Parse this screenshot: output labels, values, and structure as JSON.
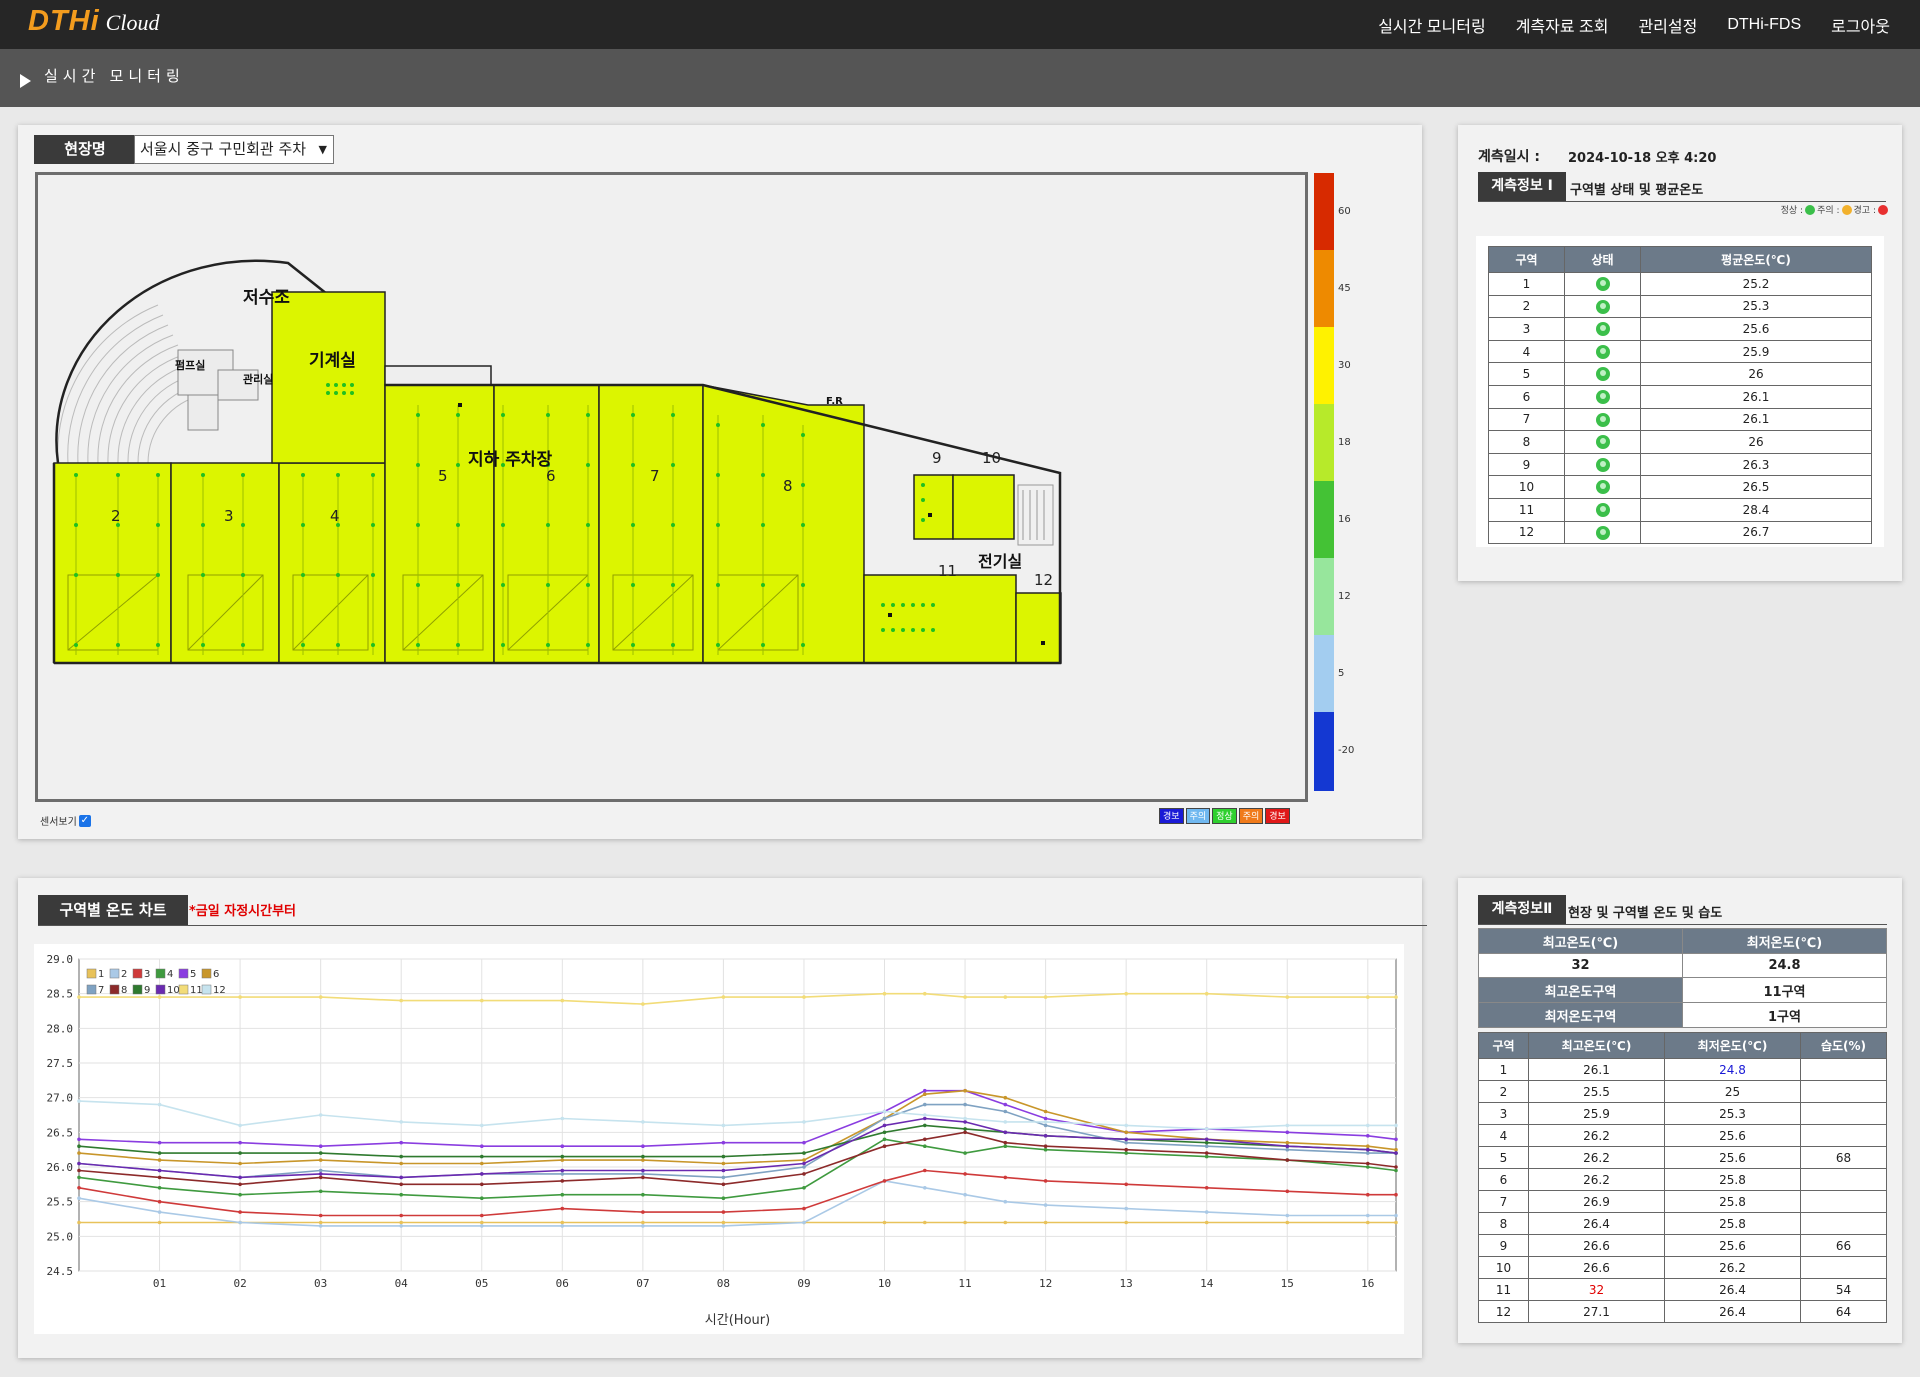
{
  "app": {
    "logo_main": "DTHi",
    "logo_sub": "Cloud"
  },
  "nav": {
    "items": [
      "실시간 모니터링",
      "계측자료 조회",
      "관리설정",
      "DTHi-FDS",
      "로그아웃"
    ]
  },
  "breadcrumb": {
    "title": "실시간 모니터링"
  },
  "map": {
    "site_label": "현장명",
    "site_value": "서울시 중구 구민회관 주차",
    "sensor_toggle_label": "센서보기",
    "sensor_toggle_checked": true,
    "room_labels": [
      "저수조",
      "펌프실",
      "관리실",
      "기계실",
      "지하 주차장",
      "F.R",
      "전기실"
    ],
    "zone_numbers": [
      "2",
      "3",
      "4",
      "5",
      "6",
      "7",
      "8",
      "9",
      "10",
      "11",
      "12"
    ],
    "zone_fill_color": "#dcf500",
    "scale": [
      {
        "label": "60",
        "color": "#d72a00"
      },
      {
        "label": "45",
        "color": "#ee8a00"
      },
      {
        "label": "30",
        "color": "#fff200"
      },
      {
        "label": "18",
        "color": "#b7ea2a"
      },
      {
        "label": "16",
        "color": "#44c235"
      },
      {
        "label": "12",
        "color": "#97e69c"
      },
      {
        "label": "5",
        "color": "#a3cdf0"
      },
      {
        "label": "-20",
        "color": "#1438d2"
      }
    ],
    "legend_badges": [
      {
        "label": "경보",
        "color": "#1a1ad6"
      },
      {
        "label": "주의",
        "color": "#70b8f0"
      },
      {
        "label": "정상",
        "color": "#2fd02f"
      },
      {
        "label": "주의",
        "color": "#f07a1a"
      },
      {
        "label": "경보",
        "color": "#e01818"
      }
    ]
  },
  "info1": {
    "date_label": "계측일시 :",
    "date_value": "2024-10-18 오후 4:20",
    "section_tab": "계측정보 Ⅰ",
    "section_title": "구역별 상태 및 평균온도",
    "legend": {
      "normal": "정상 :",
      "caution": "주의 :",
      "warning": "경고 :"
    },
    "headers": [
      "구역",
      "상태",
      "평균온도(℃)"
    ],
    "rows": [
      [
        "1",
        "25.2"
      ],
      [
        "2",
        "25.3"
      ],
      [
        "3",
        "25.6"
      ],
      [
        "4",
        "25.9"
      ],
      [
        "5",
        "26"
      ],
      [
        "6",
        "26.1"
      ],
      [
        "7",
        "26.1"
      ],
      [
        "8",
        "26"
      ],
      [
        "9",
        "26.3"
      ],
      [
        "10",
        "26.5"
      ],
      [
        "11",
        "28.4"
      ],
      [
        "12",
        "26.7"
      ]
    ]
  },
  "chart_section": {
    "title": "구역별 온도 차트",
    "note": "*금일 자정시간부터"
  },
  "chart_data": {
    "type": "line",
    "title": "",
    "xlabel": "시간(Hour)",
    "ylabel": "",
    "xlim": [
      0,
      16.35
    ],
    "ylim": [
      24.5,
      29.0
    ],
    "x_ticks": [
      "01",
      "02",
      "03",
      "04",
      "05",
      "06",
      "07",
      "08",
      "09",
      "10",
      "11",
      "12",
      "13",
      "14",
      "15",
      "16"
    ],
    "y_ticks": [
      "29.0",
      "28.5",
      "28.0",
      "27.5",
      "27.0",
      "26.5",
      "26.0",
      "25.5",
      "25.0",
      "24.5"
    ],
    "grid": true,
    "legend_position": "top-left",
    "x": [
      0,
      1,
      2,
      3,
      4,
      5,
      6,
      7,
      8,
      9,
      10,
      10.5,
      11,
      11.5,
      12,
      13,
      14,
      15,
      16,
      16.35
    ],
    "series": [
      {
        "name": "1",
        "color": "#e8c25a",
        "values": [
          25.2,
          25.2,
          25.2,
          25.2,
          25.2,
          25.2,
          25.2,
          25.2,
          25.2,
          25.2,
          25.2,
          25.2,
          25.2,
          25.2,
          25.2,
          25.2,
          25.2,
          25.2,
          25.2,
          25.2
        ]
      },
      {
        "name": "2",
        "color": "#aac9e6",
        "values": [
          25.55,
          25.35,
          25.2,
          25.15,
          25.15,
          25.15,
          25.15,
          25.15,
          25.15,
          25.2,
          25.8,
          25.7,
          25.6,
          25.5,
          25.45,
          25.4,
          25.35,
          25.3,
          25.3,
          25.3
        ]
      },
      {
        "name": "3",
        "color": "#cf3a3a",
        "values": [
          25.7,
          25.5,
          25.35,
          25.3,
          25.3,
          25.3,
          25.4,
          25.35,
          25.35,
          25.4,
          25.8,
          25.95,
          25.9,
          25.85,
          25.8,
          25.75,
          25.7,
          25.65,
          25.6,
          25.6
        ]
      },
      {
        "name": "4",
        "color": "#3f9a3f",
        "values": [
          25.85,
          25.7,
          25.6,
          25.65,
          25.6,
          25.55,
          25.6,
          25.6,
          25.55,
          25.7,
          26.4,
          26.3,
          26.2,
          26.3,
          26.25,
          26.2,
          26.15,
          26.1,
          26.0,
          25.95
        ]
      },
      {
        "name": "5",
        "color": "#8a3de0",
        "values": [
          26.4,
          26.35,
          26.35,
          26.3,
          26.35,
          26.3,
          26.3,
          26.3,
          26.35,
          26.35,
          26.8,
          27.1,
          27.1,
          26.9,
          26.7,
          26.5,
          26.55,
          26.5,
          26.45,
          26.4
        ]
      },
      {
        "name": "6",
        "color": "#c8962a",
        "values": [
          26.2,
          26.1,
          26.05,
          26.1,
          26.05,
          26.05,
          26.1,
          26.1,
          26.05,
          26.1,
          26.7,
          27.05,
          27.1,
          27.0,
          26.8,
          26.5,
          26.4,
          26.35,
          26.3,
          26.25
        ]
      },
      {
        "name": "7",
        "color": "#7fa2c2",
        "values": [
          26.05,
          25.95,
          25.85,
          25.95,
          25.85,
          25.9,
          25.9,
          25.9,
          25.85,
          26.0,
          26.7,
          26.9,
          26.9,
          26.8,
          26.6,
          26.35,
          26.3,
          26.25,
          26.2,
          26.2
        ]
      },
      {
        "name": "8",
        "color": "#8c2a2a",
        "values": [
          25.95,
          25.85,
          25.75,
          25.85,
          25.75,
          25.75,
          25.8,
          25.85,
          25.75,
          25.9,
          26.3,
          26.4,
          26.5,
          26.35,
          26.3,
          26.25,
          26.2,
          26.1,
          26.05,
          26.0
        ]
      },
      {
        "name": "9",
        "color": "#2f7a2f",
        "values": [
          26.3,
          26.2,
          26.2,
          26.2,
          26.15,
          26.15,
          26.15,
          26.15,
          26.15,
          26.2,
          26.5,
          26.6,
          26.55,
          26.5,
          26.45,
          26.4,
          26.35,
          26.3,
          26.25,
          26.2
        ]
      },
      {
        "name": "10",
        "color": "#6a2ab0",
        "values": [
          26.05,
          25.95,
          25.85,
          25.9,
          25.85,
          25.9,
          25.95,
          25.95,
          25.95,
          26.05,
          26.6,
          26.7,
          26.65,
          26.5,
          26.45,
          26.4,
          26.4,
          26.3,
          26.25,
          26.2
        ]
      },
      {
        "name": "11",
        "color": "#f2dc78",
        "values": [
          28.45,
          28.45,
          28.45,
          28.45,
          28.4,
          28.4,
          28.4,
          28.35,
          28.45,
          28.45,
          28.5,
          28.5,
          28.45,
          28.45,
          28.45,
          28.5,
          28.5,
          28.45,
          28.45,
          28.45
        ]
      },
      {
        "name": "12",
        "color": "#c6e3ee",
        "values": [
          26.95,
          26.9,
          26.6,
          26.75,
          26.65,
          26.6,
          26.7,
          26.65,
          26.6,
          26.65,
          26.8,
          26.75,
          26.7,
          26.65,
          26.65,
          26.6,
          26.55,
          26.6,
          26.6,
          26.6
        ]
      }
    ]
  },
  "info2": {
    "section_tab": "계측정보Ⅱ",
    "section_title": "현장 및 구역별 온도 및 습도",
    "max_temp_label": "최고온도(℃)",
    "min_temp_label": "최저온도(℃)",
    "max_temp_value": "32",
    "min_temp_value": "24.8",
    "max_zone_label": "최고온도구역",
    "max_zone_value": "11구역",
    "min_zone_label": "최저온도구역",
    "min_zone_value": "1구역",
    "headers": [
      "구역",
      "최고온도(℃)",
      "최저온도(℃)",
      "습도(%)"
    ],
    "rows": [
      [
        "1",
        "26.1",
        "24.8",
        ""
      ],
      [
        "2",
        "25.5",
        "25",
        ""
      ],
      [
        "3",
        "25.9",
        "25.3",
        ""
      ],
      [
        "4",
        "26.2",
        "25.6",
        ""
      ],
      [
        "5",
        "26.2",
        "25.6",
        "68"
      ],
      [
        "6",
        "26.2",
        "25.8",
        ""
      ],
      [
        "7",
        "26.9",
        "25.8",
        ""
      ],
      [
        "8",
        "26.4",
        "25.8",
        ""
      ],
      [
        "9",
        "26.6",
        "25.6",
        "66"
      ],
      [
        "10",
        "26.6",
        "26.2",
        ""
      ],
      [
        "11",
        "32",
        "26.4",
        "54"
      ],
      [
        "12",
        "27.1",
        "26.4",
        "64"
      ]
    ]
  }
}
